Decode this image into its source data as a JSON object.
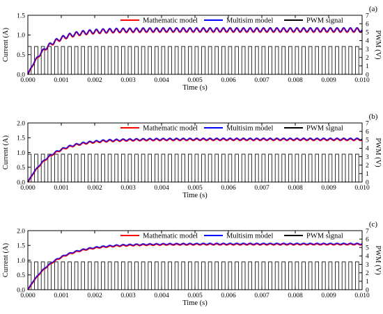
{
  "chart_data": [
    {
      "type": "line",
      "panel_label": "(a)",
      "xlabel": "Time (s)",
      "ylabel": "Current (A)",
      "y2label": "PWM (V)",
      "xlim": [
        0,
        0.01
      ],
      "ylim": [
        0,
        1.5
      ],
      "y2lim": [
        0,
        7
      ],
      "x_ticks": [
        "0.000",
        "0.001",
        "0.002",
        "0.003",
        "0.004",
        "0.005",
        "0.006",
        "0.007",
        "0.008",
        "0.009",
        "0.010"
      ],
      "y_ticks": [
        "0.0",
        "0.5",
        "1.0",
        "1.5"
      ],
      "y2_ticks": [
        "0",
        "1",
        "2",
        "3",
        "4",
        "5",
        "6",
        "7"
      ],
      "legend": [
        "Mathematic model",
        "Multisim model",
        "PWM signal"
      ],
      "legend_position": "top-right",
      "series": [
        {
          "name": "Mathematic model",
          "color": "#ff0000",
          "steady_state": 1.13,
          "time_constant": 0.0006,
          "ripple": 0.05
        },
        {
          "name": "Multisim model",
          "color": "#0000ff",
          "steady_state": 1.13,
          "time_constant": 0.0006,
          "ripple": 0.05
        },
        {
          "name": "PWM signal",
          "color": "#000000",
          "high": 3.3,
          "low": 0,
          "period": 0.0002,
          "duty": 0.5
        }
      ]
    },
    {
      "type": "line",
      "panel_label": "(b)",
      "xlabel": "Time (s)",
      "ylabel": "Current (A)",
      "y2label": "PWM (V)",
      "xlim": [
        0,
        0.01
      ],
      "ylim": [
        0,
        2.0
      ],
      "y2lim": [
        0,
        7
      ],
      "x_ticks": [
        "0.000",
        "0.001",
        "0.002",
        "0.003",
        "0.004",
        "0.005",
        "0.006",
        "0.007",
        "0.008",
        "0.009",
        "0.010"
      ],
      "y_ticks": [
        "0.0",
        "0.5",
        "1.0",
        "1.5",
        "2.0"
      ],
      "y2_ticks": [
        "0",
        "1",
        "2",
        "3",
        "4",
        "5",
        "6",
        "7"
      ],
      "legend": [
        "Mathematic model",
        "Multisim model",
        "PWM signal"
      ],
      "legend_position": "top-right",
      "series": [
        {
          "name": "Mathematic model",
          "color": "#ff0000",
          "steady_state": 1.45,
          "time_constant": 0.0007,
          "ripple": 0.03
        },
        {
          "name": "Multisim model",
          "color": "#0000ff",
          "steady_state": 1.45,
          "time_constant": 0.0007,
          "ripple": 0.03
        },
        {
          "name": "PWM signal",
          "color": "#000000",
          "high": 3.3,
          "low": 0,
          "period": 0.0002,
          "duty": 0.5
        }
      ]
    },
    {
      "type": "line",
      "panel_label": "(c)",
      "xlabel": "Time (s)",
      "ylabel": "Current (A)",
      "y2label": "PWM (V)",
      "xlim": [
        0,
        0.01
      ],
      "ylim": [
        0,
        2.0
      ],
      "y2lim": [
        0,
        7
      ],
      "x_ticks": [
        "0.000",
        "0.001",
        "0.002",
        "0.003",
        "0.004",
        "0.005",
        "0.006",
        "0.007",
        "0.008",
        "0.009",
        "0.010"
      ],
      "y_ticks": [
        "0.0",
        "0.5",
        "1.0",
        "1.5",
        "2.0"
      ],
      "y2_ticks": [
        "0",
        "1",
        "2",
        "3",
        "4",
        "5",
        "6",
        "7"
      ],
      "legend": [
        "Mathematic model",
        "Multisim model",
        "PWM signal"
      ],
      "legend_position": "top-right",
      "series": [
        {
          "name": "Mathematic model",
          "color": "#ff0000",
          "steady_state": 1.55,
          "time_constant": 0.0008,
          "ripple": 0.02
        },
        {
          "name": "Multisim model",
          "color": "#0000ff",
          "steady_state": 1.55,
          "time_constant": 0.0008,
          "ripple": 0.02
        },
        {
          "name": "PWM signal",
          "color": "#000000",
          "high": 3.3,
          "low": 0,
          "period": 0.0002,
          "duty": 0.5
        }
      ]
    }
  ]
}
